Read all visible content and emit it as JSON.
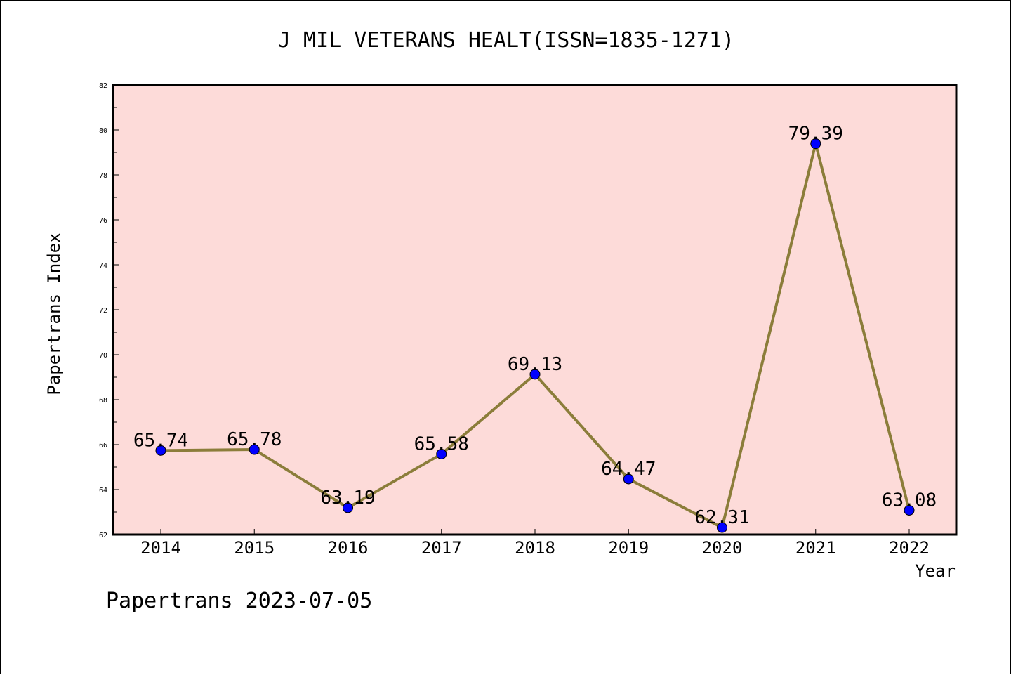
{
  "chart_data": {
    "type": "line",
    "title": "J MIL VETERANS HEALT(ISSN=1835-1271)",
    "xlabel": "Year",
    "ylabel": "Papertrans Index",
    "categories": [
      "2014",
      "2015",
      "2016",
      "2017",
      "2018",
      "2019",
      "2020",
      "2021",
      "2022"
    ],
    "series": [
      {
        "values": [
          65.74,
          65.78,
          63.19,
          65.58,
          69.13,
          64.47,
          62.31,
          79.39,
          63.08
        ],
        "labels": [
          "65.74",
          "65.78",
          "63.19",
          "65.58",
          "69.13",
          "64.47",
          "62.31",
          "79.39",
          "63.08"
        ]
      }
    ],
    "ylim": [
      62,
      82
    ],
    "yticks": [
      "62",
      "64",
      "66",
      "68",
      "70",
      "72",
      "74",
      "76",
      "78",
      "80",
      "82"
    ],
    "grid": false,
    "colors": {
      "plot_background": "#fddbd9",
      "line": "#8b7d3a",
      "marker": "#0000ff"
    }
  },
  "footer": "Papertrans 2023-07-05"
}
